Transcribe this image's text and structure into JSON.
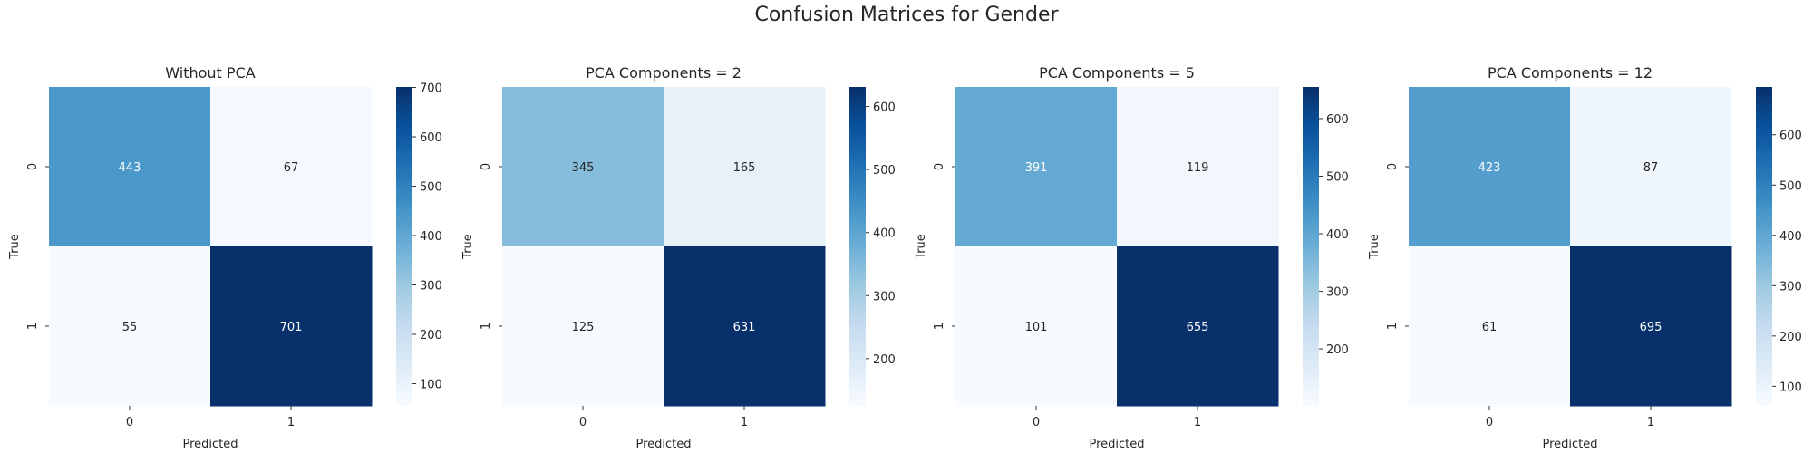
{
  "figure": {
    "title": "Confusion Matrices for Gender"
  },
  "colormap": {
    "name": "Blues",
    "stops": [
      "#f7fbff",
      "#deebf7",
      "#c6dbef",
      "#9ecae1",
      "#6baed6",
      "#4292c6",
      "#2171b5",
      "#08519c",
      "#08306b"
    ],
    "text_dark": "#262626",
    "text_light": "#ffffff"
  },
  "chart_data": [
    {
      "type": "heatmap",
      "title": "Without PCA",
      "xlabel": "Predicted",
      "ylabel": "True",
      "x_categories": [
        "0",
        "1"
      ],
      "y_categories": [
        "0",
        "1"
      ],
      "values": [
        [
          443,
          67
        ],
        [
          55,
          701
        ]
      ],
      "colorbar": {
        "min": 55,
        "max": 701,
        "ticks": [
          100,
          200,
          300,
          400,
          500,
          600,
          700
        ]
      }
    },
    {
      "type": "heatmap",
      "title": "PCA Components = 2",
      "xlabel": "Predicted",
      "ylabel": "True",
      "x_categories": [
        "0",
        "1"
      ],
      "y_categories": [
        "0",
        "1"
      ],
      "values": [
        [
          345,
          165
        ],
        [
          125,
          631
        ]
      ],
      "colorbar": {
        "min": 125,
        "max": 631,
        "ticks": [
          200,
          300,
          400,
          500,
          600
        ]
      }
    },
    {
      "type": "heatmap",
      "title": "PCA Components = 5",
      "xlabel": "Predicted",
      "ylabel": "True",
      "x_categories": [
        "0",
        "1"
      ],
      "y_categories": [
        "0",
        "1"
      ],
      "values": [
        [
          391,
          119
        ],
        [
          101,
          655
        ]
      ],
      "colorbar": {
        "min": 101,
        "max": 655,
        "ticks": [
          200,
          300,
          400,
          500,
          600
        ]
      }
    },
    {
      "type": "heatmap",
      "title": "PCA Components = 12",
      "xlabel": "Predicted",
      "ylabel": "True",
      "x_categories": [
        "0",
        "1"
      ],
      "y_categories": [
        "0",
        "1"
      ],
      "values": [
        [
          423,
          87
        ],
        [
          61,
          695
        ]
      ],
      "colorbar": {
        "min": 61,
        "max": 695,
        "ticks": [
          100,
          200,
          300,
          400,
          500,
          600
        ]
      }
    }
  ]
}
